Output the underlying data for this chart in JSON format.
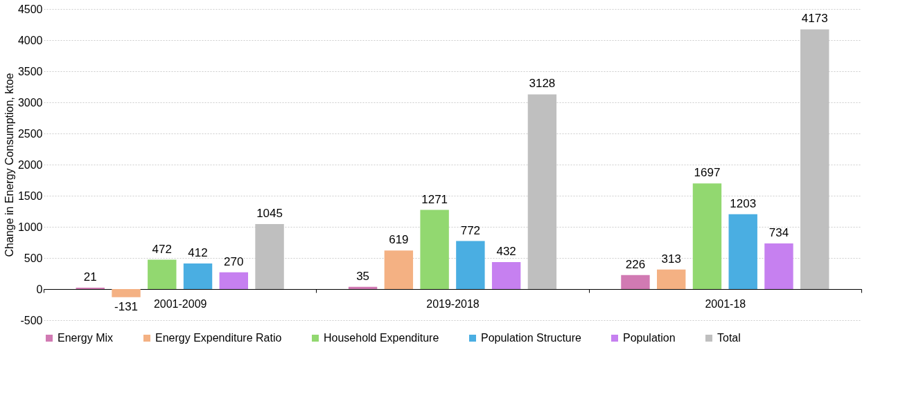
{
  "chart_data": {
    "type": "bar",
    "ylabel": "Change in Energy Consumption, ktoe",
    "categories": [
      "2001-2009",
      "2019-2018",
      "2001-18"
    ],
    "series": [
      {
        "name": "Energy Mix",
        "color": "#d17ab3",
        "values": [
          21,
          35,
          226
        ]
      },
      {
        "name": "Energy Expenditure Ratio",
        "color": "#f4b183",
        "values": [
          -131,
          619,
          313
        ]
      },
      {
        "name": "Household Expenditure",
        "color": "#92d870",
        "values": [
          472,
          1271,
          1697
        ]
      },
      {
        "name": "Population Structure",
        "color": "#4aaee2",
        "values": [
          412,
          772,
          1203
        ]
      },
      {
        "name": "Population",
        "color": "#c680f0",
        "values": [
          270,
          432,
          734
        ]
      },
      {
        "name": "Total",
        "color": "#bfbfbf",
        "values": [
          1045,
          3128,
          4173
        ]
      }
    ],
    "ylim": [
      -500,
      4500
    ],
    "yticks": [
      -500,
      0,
      500,
      1000,
      1500,
      2000,
      2500,
      3000,
      3500,
      4000,
      4500
    ],
    "grid": "y",
    "legend": "bottom",
    "data_labels": true
  }
}
